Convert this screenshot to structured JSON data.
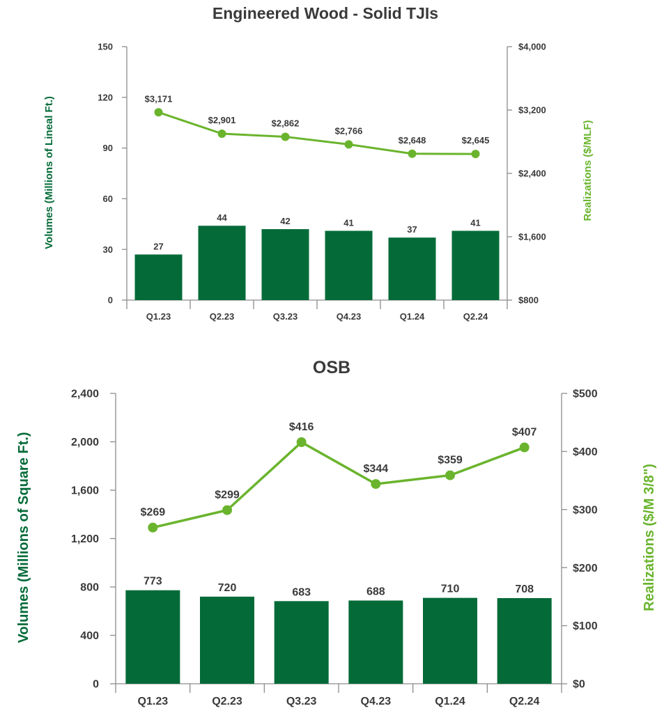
{
  "colors": {
    "bar": "#046b38",
    "line": "#6ab42d",
    "text": "#3a3a3a",
    "axis": "#8c8c8c",
    "ylabel_left": "#046b38",
    "ylabel_right": "#6ab42d"
  },
  "chart_data": [
    {
      "type": "bar",
      "title": "Engineered Wood - Solid TJIs",
      "categories": [
        "Q1.23",
        "Q2.23",
        "Q3.23",
        "Q4.23",
        "Q1.24",
        "Q2.24"
      ],
      "series": [
        {
          "name": "Volumes",
          "axis": "left",
          "type": "bar",
          "values": [
            27,
            44,
            42,
            41,
            37,
            41
          ],
          "labels": [
            "27",
            "44",
            "42",
            "41",
            "37",
            "41"
          ]
        },
        {
          "name": "Realizations",
          "axis": "right",
          "type": "line",
          "values": [
            3171,
            2901,
            2862,
            2766,
            2648,
            2645
          ],
          "labels": [
            "$3,171",
            "$2,901",
            "$2,862",
            "$2,766",
            "$2,648",
            "$2,645"
          ]
        }
      ],
      "ylabel": "Volumes (Millions of Lineal Ft.)",
      "y2label": "Realizations ($/MLF)",
      "ylim": [
        0,
        150
      ],
      "y2lim": [
        800,
        4000
      ],
      "yticks": [
        "0",
        "30",
        "60",
        "90",
        "120",
        "150"
      ],
      "y2ticks": [
        "$800",
        "$1,600",
        "$2,400",
        "$3,200",
        "$4,000"
      ],
      "grid": false
    },
    {
      "type": "bar",
      "title": "OSB",
      "categories": [
        "Q1.23",
        "Q2.23",
        "Q3.23",
        "Q4.23",
        "Q1.24",
        "Q2.24"
      ],
      "series": [
        {
          "name": "Volumes",
          "axis": "left",
          "type": "bar",
          "values": [
            773,
            720,
            683,
            688,
            710,
            708
          ],
          "labels": [
            "773",
            "720",
            "683",
            "688",
            "710",
            "708"
          ]
        },
        {
          "name": "Realizations",
          "axis": "right",
          "type": "line",
          "values": [
            269,
            299,
            416,
            344,
            359,
            407
          ],
          "labels": [
            "$269",
            "$299",
            "$416",
            "$344",
            "$359",
            "$407"
          ]
        }
      ],
      "ylabel": "Volumes (Millions of Square Ft.)",
      "y2label": "Realizations ($/M 3/8\")",
      "ylim": [
        0,
        2400
      ],
      "y2lim": [
        0,
        500
      ],
      "yticks": [
        "0",
        "400",
        "800",
        "1,200",
        "1,600",
        "2,000",
        "2,400"
      ],
      "y2ticks": [
        "$0",
        "$100",
        "$200",
        "$300",
        "$400",
        "$500"
      ],
      "grid": false
    }
  ]
}
